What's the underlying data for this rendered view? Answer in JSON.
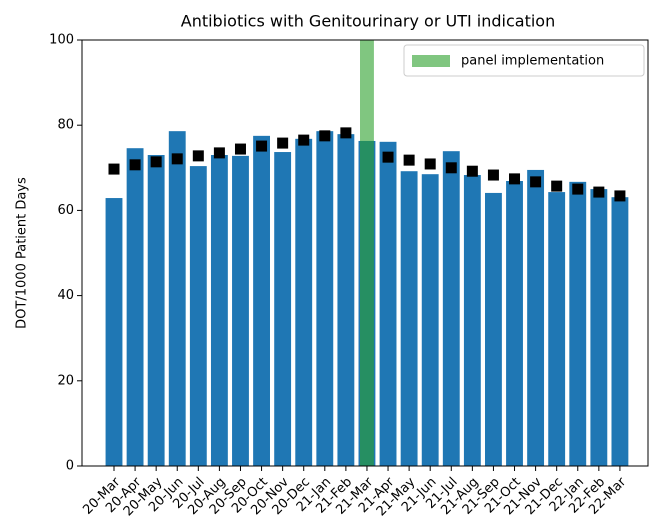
{
  "chart_data": {
    "type": "bar",
    "title": "Antibiotics with Genitourinary or UTI indication",
    "y_label": "DOT/1000 Patient Days",
    "categories": [
      "20-Mar",
      "20-Apr",
      "20-May",
      "20-Jun",
      "20-Jul",
      "20-Aug",
      "20-Sep",
      "20-Oct",
      "20-Nov",
      "20-Dec",
      "21-Jan",
      "21-Feb",
      "21-Mar",
      "21-Apr",
      "21-May",
      "21-Jun",
      "21-Jul",
      "21-Aug",
      "21-Sep",
      "21-Oct",
      "21-Nov",
      "21-Dec",
      "22-Jan",
      "22-Feb",
      "22-Mar"
    ],
    "series": [
      {
        "color": "#1f77b4",
        "values": [
          62.9,
          74.6,
          73.0,
          78.6,
          70.4,
          73.0,
          72.8,
          77.5,
          73.7,
          76.8,
          78.6,
          77.9,
          76.3,
          76.1,
          69.2,
          68.5,
          73.9,
          68.3,
          64.1,
          66.9,
          69.5,
          64.3,
          66.7,
          65.0,
          63.1
        ]
      },
      {
        "color": "#000000",
        "values": [
          69.7,
          70.7,
          71.4,
          72.1,
          72.8,
          73.5,
          74.4,
          75.1,
          75.8,
          76.5,
          77.5,
          78.2,
          null,
          72.5,
          71.8,
          70.9,
          70.0,
          69.2,
          68.3,
          67.4,
          66.7,
          65.7,
          65.0,
          64.3,
          63.4
        ]
      }
    ],
    "highlight": {
      "label": "panel implementation",
      "category": "21-Mar",
      "color": "#2ca02c"
    },
    "ylim": [
      0,
      100
    ],
    "yticks": [
      0,
      20,
      40,
      60,
      80,
      100
    ],
    "legend": "upper right"
  }
}
